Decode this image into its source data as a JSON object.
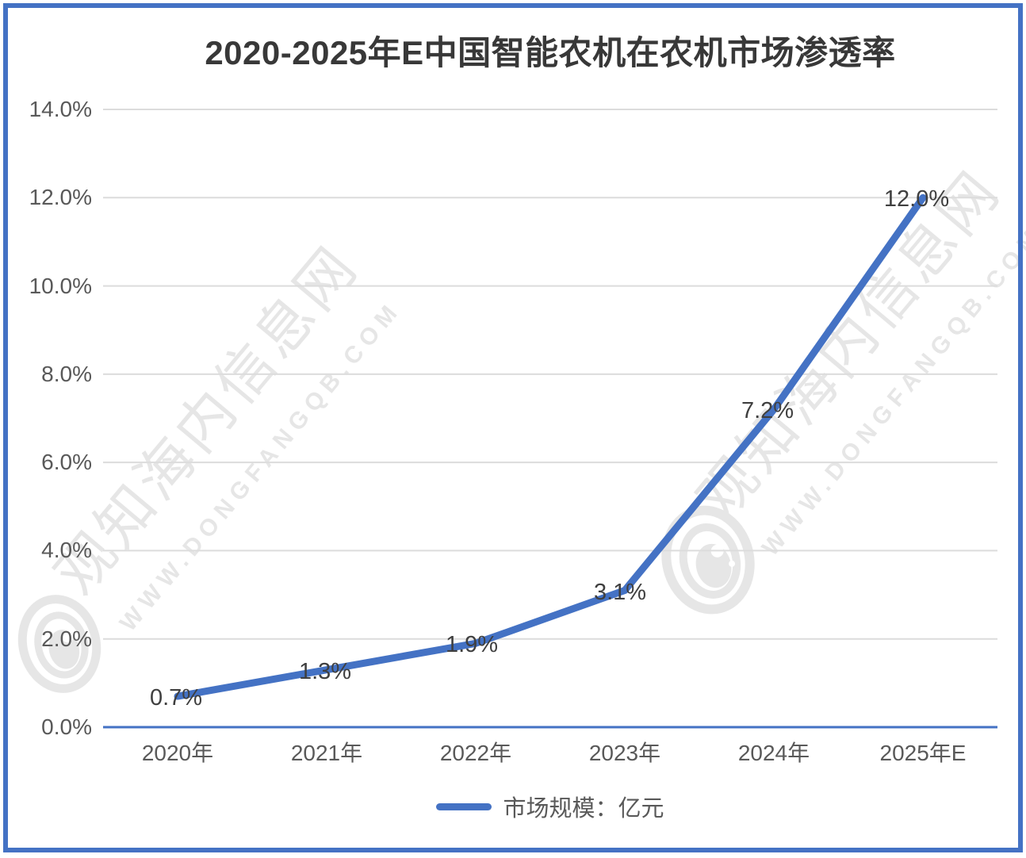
{
  "title": "2020-2025年E中国智能农机在农机市场渗透率",
  "legend": {
    "label": "市场规模：亿元",
    "line_color": "#4472C4"
  },
  "watermark": {
    "cn": "观知海内信息网",
    "url": "WWW.DONGFANGQB.COM"
  },
  "colors": {
    "accent": "#4472C4",
    "gridline": "#dcdcdc",
    "axis_text": "#595959",
    "label_text": "#3f3f3f",
    "frame": "#4472C4"
  },
  "chart_data": {
    "type": "line",
    "title": "2020-2025年E中国智能农机在农机市场渗透率",
    "categories": [
      "2020年",
      "2021年",
      "2022年",
      "2023年",
      "2024年",
      "2025年E"
    ],
    "series": [
      {
        "name": "市场规模：亿元",
        "values": [
          0.7,
          1.3,
          1.9,
          3.1,
          7.2,
          12.0
        ],
        "color": "#4472C4"
      }
    ],
    "data_labels": [
      "0.7%",
      "1.3%",
      "1.9%",
      "3.1%",
      "7.2%",
      "12.0%"
    ],
    "y_ticks": [
      "0.0%",
      "2.0%",
      "4.0%",
      "6.0%",
      "8.0%",
      "10.0%",
      "12.0%",
      "14.0%"
    ],
    "xlabel": "",
    "ylabel": "",
    "ylim": [
      0,
      14
    ],
    "y_tick_step": 2,
    "grid": true,
    "legend_position": "bottom"
  }
}
